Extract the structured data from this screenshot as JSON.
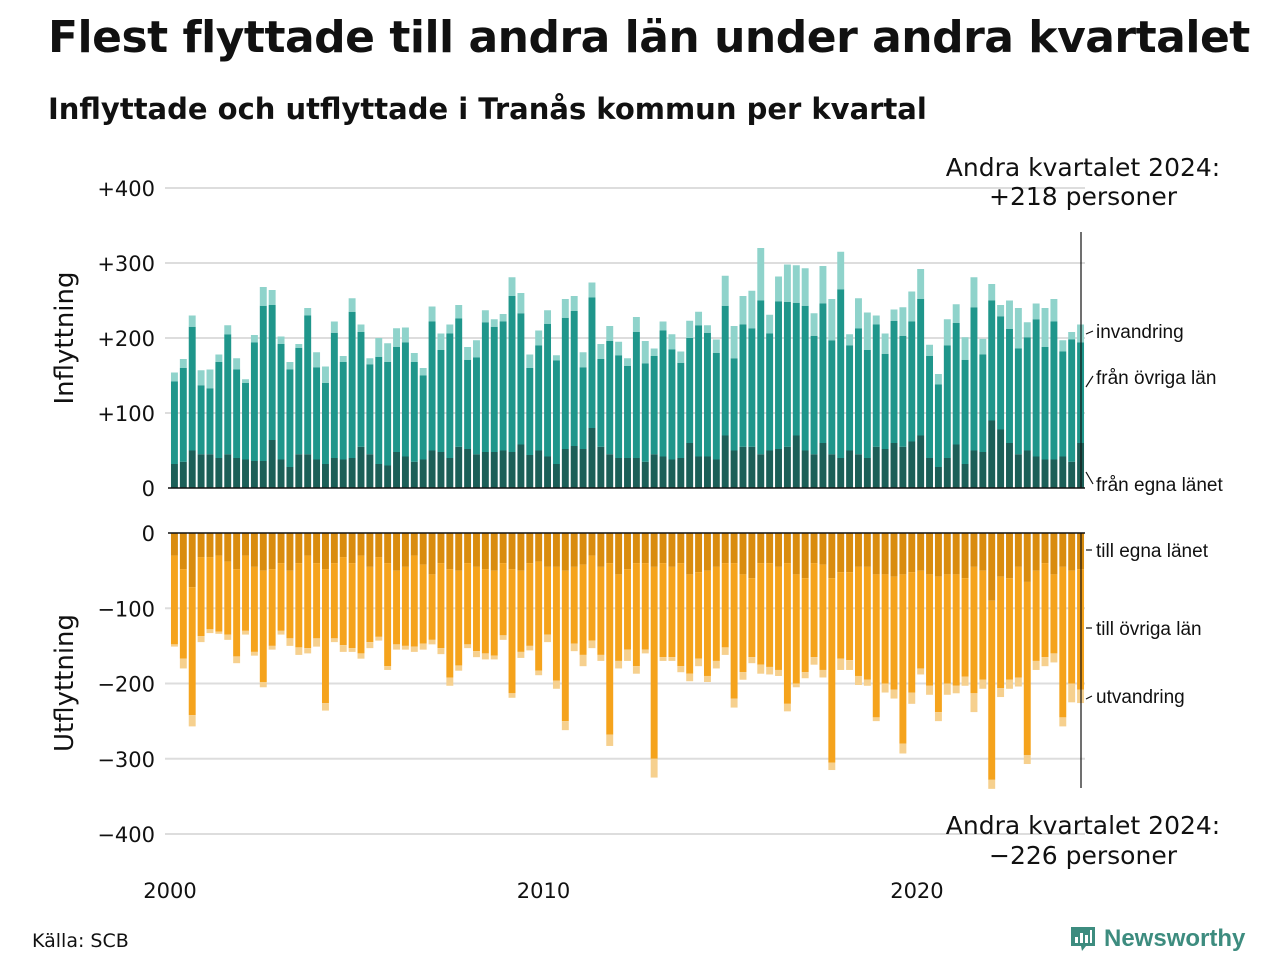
{
  "header": {
    "title": "Flest flyttade till andra län under andra kvartalet",
    "subtitle": "Inflyttade och utflyttade i Tranås kommun per kvartal"
  },
  "footer": {
    "source": "Källa: SCB",
    "logo": "Newsworthy",
    "logo_icon": "newsworthy-bar-chart-icon"
  },
  "colors": {
    "in_own": "#1c5f58",
    "in_other": "#1f968b",
    "in_imm": "#8fd3cb",
    "out_own": "#d98c0f",
    "out_other": "#f5a31c",
    "out_emi": "#f6d08e",
    "grid": "#dddddd"
  },
  "chart_data": [
    {
      "type": "bar",
      "stacked": true,
      "panel": "top",
      "ylabel": "Inflyttning",
      "ylim": [
        0,
        400
      ],
      "yticks": [
        0,
        100,
        200,
        300,
        400
      ],
      "ytick_labels": [
        "0",
        "+100",
        "+200",
        "+300",
        "+400"
      ],
      "xlim": [
        "2000-01-01",
        "2024-06-30"
      ],
      "xticks": [
        "2000",
        "2010",
        "2020"
      ],
      "grid": true,
      "x_start": "2000 Q1",
      "x_frequency": "quarterly",
      "annotation": {
        "line1": "Andra kvartalet 2024:",
        "line2": "+218 personer"
      },
      "series": [
        {
          "name": "från egna länet",
          "values": [
            32,
            35,
            50,
            45,
            45,
            40,
            45,
            40,
            38,
            36,
            36,
            64,
            38,
            28,
            45,
            45,
            38,
            32,
            40,
            38,
            40,
            55,
            45,
            32,
            30,
            48,
            42,
            35,
            38,
            50,
            48,
            40,
            55,
            52,
            45,
            48,
            48,
            50,
            48,
            58,
            44,
            50,
            42,
            32,
            52,
            56,
            52,
            80,
            55,
            45,
            40,
            40,
            40,
            35,
            45,
            42,
            38,
            40,
            60,
            42,
            42,
            38,
            70,
            50,
            55,
            55,
            45,
            50,
            52,
            55,
            70,
            50,
            45,
            60,
            45,
            40,
            50,
            45,
            40,
            55,
            52,
            60,
            55,
            62,
            70,
            40,
            28,
            40,
            58,
            32,
            50,
            48,
            90,
            78,
            60,
            45,
            50,
            42,
            38,
            38,
            42,
            35,
            60
          ]
        },
        {
          "name": "från övriga län",
          "values": [
            110,
            125,
            165,
            92,
            88,
            128,
            160,
            118,
            102,
            158,
            207,
            180,
            154,
            130,
            142,
            185,
            123,
            108,
            167,
            130,
            195,
            153,
            120,
            143,
            138,
            140,
            152,
            133,
            112,
            172,
            136,
            166,
            171,
            119,
            129,
            173,
            167,
            172,
            208,
            175,
            116,
            140,
            177,
            138,
            175,
            180,
            109,
            174,
            117,
            151,
            137,
            123,
            168,
            131,
            131,
            168,
            147,
            127,
            140,
            175,
            165,
            142,
            173,
            123,
            163,
            158,
            205,
            156,
            197,
            193,
            177,
            193,
            158,
            186,
            152,
            225,
            140,
            168,
            144,
            163,
            127,
            163,
            148,
            160,
            182,
            136,
            110,
            150,
            162,
            139,
            191,
            130,
            160,
            151,
            152,
            141,
            151,
            183,
            150,
            184,
            140,
            163,
            134
          ]
        },
        {
          "name": "invandring",
          "values": [
            12,
            12,
            15,
            20,
            25,
            10,
            12,
            15,
            5,
            10,
            25,
            20,
            10,
            10,
            5,
            10,
            20,
            22,
            15,
            8,
            18,
            10,
            8,
            25,
            25,
            25,
            20,
            12,
            10,
            20,
            22,
            12,
            18,
            17,
            23,
            16,
            10,
            10,
            25,
            27,
            18,
            20,
            18,
            7,
            25,
            20,
            20,
            20,
            20,
            20,
            18,
            10,
            20,
            30,
            10,
            12,
            20,
            15,
            23,
            18,
            10,
            18,
            40,
            43,
            38,
            50,
            70,
            25,
            33,
            50,
            50,
            50,
            30,
            50,
            55,
            50,
            15,
            40,
            50,
            12,
            27,
            15,
            38,
            40,
            40,
            15,
            14,
            35,
            25,
            30,
            40,
            21,
            22,
            15,
            38,
            54,
            20,
            21,
            52,
            30,
            15,
            10,
            24
          ]
        }
      ]
    },
    {
      "type": "bar",
      "stacked": true,
      "panel": "bottom",
      "ylabel": "Utflyttning",
      "ylim": [
        -400,
        0
      ],
      "yticks": [
        0,
        -100,
        -200,
        -300,
        -400
      ],
      "ytick_labels": [
        "0",
        "−100",
        "−200",
        "−300",
        "−400"
      ],
      "xlim": [
        "2000-01-01",
        "2024-06-30"
      ],
      "xticks": [
        "2000",
        "2010",
        "2020"
      ],
      "grid": true,
      "x_start": "2000 Q1",
      "x_frequency": "quarterly",
      "annotation": {
        "line1": "Andra kvartalet 2024:",
        "line2": "−226 personer"
      },
      "series": [
        {
          "name": "till egna länet",
          "values": [
            -30,
            -48,
            -72,
            -32,
            -32,
            -30,
            -38,
            -48,
            -30,
            -45,
            -50,
            -48,
            -40,
            -50,
            -40,
            -30,
            -40,
            -48,
            -40,
            -32,
            -40,
            -30,
            -45,
            -32,
            -40,
            -50,
            -45,
            -30,
            -42,
            -55,
            -40,
            -48,
            -50,
            -40,
            -45,
            -48,
            -50,
            -40,
            -48,
            -50,
            -40,
            -38,
            -45,
            -45,
            -50,
            -45,
            -42,
            -30,
            -45,
            -40,
            -55,
            -48,
            -40,
            -40,
            -45,
            -40,
            -45,
            -40,
            -55,
            -52,
            -50,
            -45,
            -40,
            -40,
            -55,
            -60,
            -40,
            -40,
            -45,
            -40,
            -55,
            -60,
            -40,
            -42,
            -60,
            -52,
            -52,
            -45,
            -45,
            -55,
            -55,
            -58,
            -55,
            -52,
            -50,
            -55,
            -58,
            -55,
            -55,
            -60,
            -45,
            -50,
            -90,
            -58,
            -60,
            -45,
            -65,
            -50,
            -40,
            -55,
            -45,
            -50,
            -48
          ]
        },
        {
          "name": "till övriga län",
          "values": [
            -118,
            -119,
            -170,
            -105,
            -96,
            -101,
            -97,
            -116,
            -100,
            -113,
            -148,
            -102,
            -90,
            -90,
            -112,
            -123,
            -100,
            -178,
            -100,
            -117,
            -113,
            -130,
            -100,
            -106,
            -137,
            -98,
            -105,
            -121,
            -105,
            -87,
            -113,
            -144,
            -126,
            -108,
            -112,
            -112,
            -113,
            -96,
            -165,
            -108,
            -110,
            -145,
            -90,
            -151,
            -200,
            -102,
            -120,
            -113,
            -117,
            -228,
            -115,
            -107,
            -137,
            -115,
            -255,
            -125,
            -120,
            -137,
            -132,
            -115,
            -140,
            -125,
            -112,
            -180,
            -130,
            -105,
            -135,
            -138,
            -137,
            -187,
            -145,
            -125,
            -125,
            -140,
            -245,
            -115,
            -117,
            -145,
            -150,
            -190,
            -145,
            -150,
            -225,
            -160,
            -130,
            -148,
            -180,
            -145,
            -148,
            -131,
            -168,
            -145,
            -238,
            -148,
            -135,
            -147,
            -230,
            -120,
            -125,
            -105,
            -200,
            -150,
            -160
          ]
        },
        {
          "name": "utvandring",
          "values": [
            -3,
            -13,
            -15,
            -8,
            -5,
            -3,
            -7,
            -9,
            -5,
            -5,
            -7,
            -5,
            -5,
            -10,
            -10,
            -7,
            -11,
            -10,
            -5,
            -9,
            -5,
            -7,
            -8,
            -5,
            -5,
            -7,
            -5,
            -7,
            -8,
            -6,
            -8,
            -11,
            -7,
            -5,
            -8,
            -8,
            -5,
            -6,
            -6,
            -8,
            -6,
            -6,
            -10,
            -11,
            -12,
            -10,
            -15,
            -10,
            -8,
            -15,
            -10,
            -15,
            -10,
            -5,
            -25,
            -5,
            -5,
            -8,
            -10,
            -10,
            -8,
            -10,
            -10,
            -12,
            -10,
            -8,
            -12,
            -10,
            -8,
            -10,
            -5,
            -8,
            -10,
            -10,
            -10,
            -15,
            -13,
            -12,
            -8,
            -5,
            -12,
            -12,
            -13,
            -15,
            -8,
            -12,
            -12,
            -15,
            -10,
            -12,
            -25,
            -12,
            -12,
            -12,
            -12,
            -12,
            -12,
            -12,
            -12,
            -12,
            -12,
            -25,
            -18
          ]
        }
      ]
    }
  ]
}
